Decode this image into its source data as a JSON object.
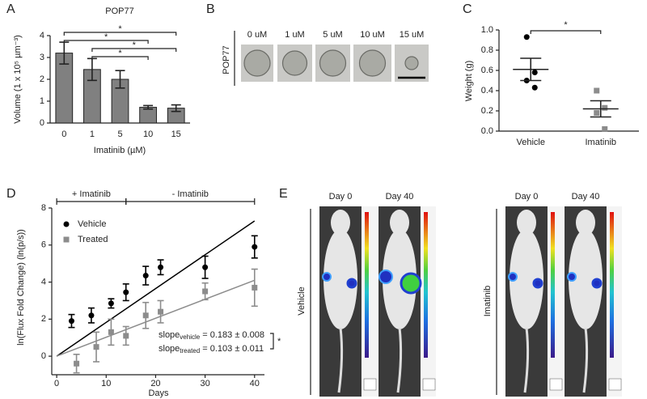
{
  "chart_data": [
    {
      "panel": "A",
      "type": "bar",
      "title": "POP77",
      "xlabel": "Imatinib (µM)",
      "ylabel": "Volume (1 x 10⁵ µm⁻³)",
      "categories": [
        "0",
        "1",
        "5",
        "10",
        "15"
      ],
      "values": [
        3.2,
        2.45,
        2.0,
        0.72,
        0.68
      ],
      "errors": [
        0.5,
        0.5,
        0.4,
        0.08,
        0.15
      ],
      "color": "#808080",
      "ylim": [
        0,
        4
      ],
      "yticks": [
        0,
        1,
        2,
        3,
        4
      ],
      "brackets": [
        {
          "from": "0",
          "to": "15",
          "label": "*"
        },
        {
          "from": "0",
          "to": "10",
          "label": "*"
        },
        {
          "from": "1",
          "to": "15",
          "label": "*"
        },
        {
          "from": "1",
          "to": "10",
          "label": "*"
        }
      ]
    },
    {
      "panel": "C",
      "type": "dot",
      "ylabel": "Weight (g)",
      "categories": [
        "Vehicle",
        "Imatinib"
      ],
      "points": [
        [
          0.93,
          0.58,
          0.5,
          0.43
        ],
        [
          0.4,
          0.23,
          0.18,
          0.02
        ]
      ],
      "means": [
        0.61,
        0.22
      ],
      "sems": [
        0.11,
        0.08
      ],
      "colors": [
        "#000000",
        "#8c8c8c"
      ],
      "ylim": [
        0,
        1.0
      ],
      "yticks": [
        {
          "value": 0,
          "label": "0.0"
        },
        {
          "value": 0.2,
          "label": "0.2"
        },
        {
          "value": 0.4,
          "label": "0.4"
        },
        {
          "value": 0.6,
          "label": "0.6"
        },
        {
          "value": 0.8,
          "label": "0.8"
        },
        {
          "value": 1.0,
          "label": "1.0"
        }
      ],
      "brackets": [
        {
          "from": "Vehicle",
          "to": "Imatinib",
          "label": "*"
        }
      ]
    },
    {
      "panel": "D",
      "type": "scatter",
      "xlabel": "Days",
      "ylabel": "ln(Flux Fold Change) (ln(p/s))",
      "xlim": [
        -1,
        42
      ],
      "xticks": [
        0,
        10,
        20,
        30,
        40
      ],
      "ylim": [
        -1,
        8
      ],
      "yticks": [
        0,
        2,
        4,
        6,
        8
      ],
      "fit_x": [
        0,
        40
      ],
      "series": [
        {
          "name": "Vehicle",
          "color": "#000000",
          "x": [
            3,
            7,
            11,
            14,
            18,
            21,
            30,
            40
          ],
          "values": [
            1.9,
            2.2,
            2.85,
            3.45,
            4.35,
            4.8,
            4.8,
            5.9
          ],
          "errors": [
            0.35,
            0.4,
            0.25,
            0.45,
            0.5,
            0.4,
            0.6,
            0.6
          ],
          "fit_values": [
            0,
            7.3
          ]
        },
        {
          "name": "Treated",
          "color": "#8c8c8c",
          "x": [
            4,
            8,
            11,
            14,
            18,
            21,
            30,
            40
          ],
          "values": [
            -0.4,
            0.5,
            1.3,
            1.1,
            2.2,
            2.4,
            3.5,
            3.7
          ],
          "errors": [
            0.5,
            0.8,
            0.7,
            0.5,
            0.7,
            0.6,
            0.45,
            1.0
          ],
          "fit_values": [
            0,
            4.1
          ]
        }
      ],
      "phases": [
        {
          "label": "+ Imatinib",
          "from": 0,
          "to": 14
        },
        {
          "label": "- Imatinib",
          "from": 14,
          "to": 40
        }
      ],
      "slopes": [
        {
          "label": "slope",
          "sub": "vehicle",
          "text": " = 0.183 ± 0.008"
        },
        {
          "label": "slope",
          "sub": "treated",
          "text": " = 0.103 ± 0.011"
        }
      ],
      "slope_star": "*"
    }
  ],
  "panel_b": {
    "letter": "B",
    "cell_line": "POP77",
    "doses": [
      "0 uM",
      "1 uM",
      "5 uM",
      "10 uM",
      "15 uM"
    ]
  },
  "panel_e": {
    "letter": "E",
    "groups": [
      {
        "name": "Vehicle",
        "days": [
          "Day 0",
          "Day 40"
        ]
      },
      {
        "name": "Imatinib",
        "days": [
          "Day 0",
          "Day 40"
        ]
      }
    ]
  }
}
